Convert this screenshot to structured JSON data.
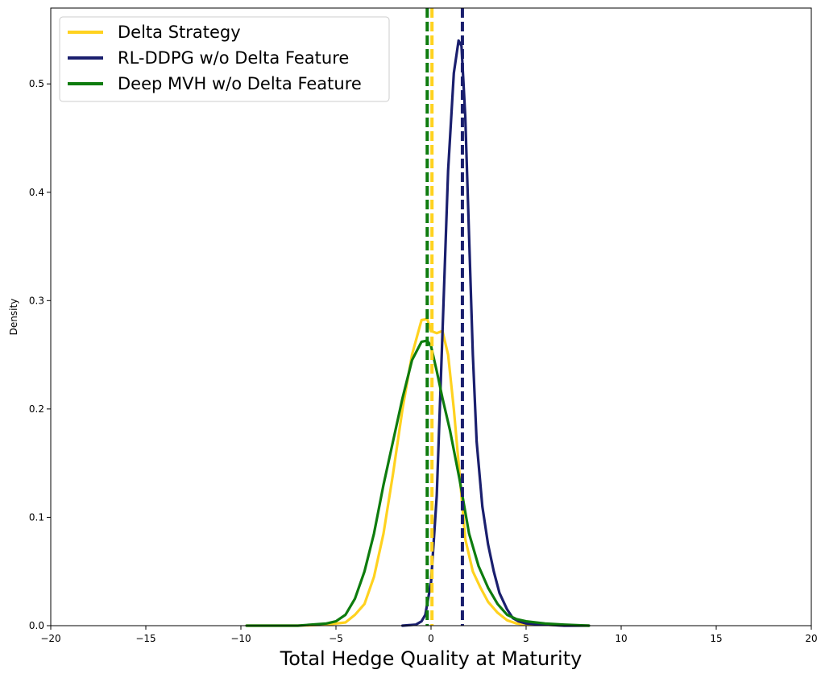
{
  "chart_data": {
    "type": "line",
    "title": "",
    "xlabel": "Total Hedge Quality at Maturity",
    "ylabel": "Density",
    "xlim": [
      -20,
      20
    ],
    "ylim": [
      0,
      0.57
    ],
    "xticks": [
      -20,
      -15,
      -10,
      -5,
      0,
      5,
      10,
      15,
      20
    ],
    "xtick_labels": [
      "−20",
      "−15",
      "−10",
      "−5",
      "0",
      "5",
      "10",
      "15",
      "20"
    ],
    "yticks": [
      0.0,
      0.1,
      0.2,
      0.3,
      0.4,
      0.5
    ],
    "ytick_labels": [
      "0.0",
      "0.1",
      "0.2",
      "0.3",
      "0.4",
      "0.5"
    ],
    "grid": false,
    "legend_position": "top-left",
    "series": [
      {
        "name": "Delta Strategy",
        "color": "#FFD21F",
        "mean_line": 0.05,
        "x": [
          -9.7,
          -7.0,
          -5.5,
          -4.5,
          -4.0,
          -3.5,
          -3.0,
          -2.5,
          -2.0,
          -1.5,
          -1.0,
          -0.5,
          -0.2,
          0.0,
          0.3,
          0.6,
          0.9,
          1.2,
          1.5,
          1.8,
          2.2,
          2.6,
          3.0,
          3.5,
          4.0,
          4.5,
          5.0,
          6.0,
          7.0,
          8.3
        ],
        "y": [
          0.0,
          0.0,
          0.001,
          0.003,
          0.01,
          0.02,
          0.045,
          0.085,
          0.14,
          0.2,
          0.25,
          0.282,
          0.283,
          0.272,
          0.27,
          0.272,
          0.25,
          0.2,
          0.14,
          0.08,
          0.05,
          0.035,
          0.022,
          0.012,
          0.005,
          0.002,
          0.001,
          0.001,
          0.0,
          0.0
        ]
      },
      {
        "name": "RL-DDPG w/o Delta Feature",
        "color": "#1A1F6E",
        "mean_line": 1.65,
        "x": [
          -1.5,
          -0.8,
          -0.5,
          -0.3,
          0.0,
          0.3,
          0.6,
          0.9,
          1.2,
          1.45,
          1.6,
          1.8,
          2.0,
          2.2,
          2.4,
          2.7,
          3.0,
          3.3,
          3.6,
          4.0,
          4.3,
          4.6,
          5.0,
          6.0,
          7.0,
          8.3
        ],
        "y": [
          0.0,
          0.001,
          0.004,
          0.01,
          0.04,
          0.12,
          0.27,
          0.42,
          0.51,
          0.54,
          0.535,
          0.47,
          0.36,
          0.25,
          0.17,
          0.11,
          0.075,
          0.05,
          0.03,
          0.015,
          0.007,
          0.004,
          0.002,
          0.001,
          0.0,
          0.0
        ]
      },
      {
        "name": "Deep MVH w/o Delta Feature",
        "color": "#0E7C0E",
        "mean_line": -0.2,
        "x": [
          -9.7,
          -7.0,
          -5.5,
          -5.0,
          -4.5,
          -4.0,
          -3.5,
          -3.0,
          -2.5,
          -2.0,
          -1.5,
          -1.0,
          -0.5,
          -0.2,
          0.0,
          0.3,
          0.6,
          1.0,
          1.5,
          2.0,
          2.5,
          3.0,
          3.5,
          4.0,
          4.5,
          5.0,
          6.0,
          7.0,
          8.3
        ],
        "y": [
          0.0,
          0.0,
          0.002,
          0.004,
          0.01,
          0.025,
          0.05,
          0.085,
          0.13,
          0.17,
          0.21,
          0.245,
          0.262,
          0.263,
          0.258,
          0.235,
          0.21,
          0.18,
          0.135,
          0.085,
          0.055,
          0.035,
          0.02,
          0.01,
          0.006,
          0.004,
          0.002,
          0.001,
          0.0
        ]
      }
    ]
  }
}
